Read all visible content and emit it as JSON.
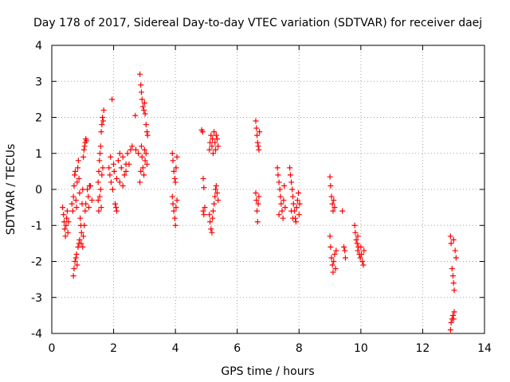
{
  "chart_data": {
    "type": "scatter",
    "title": "Day 178 of 2017, Sidereal Day-to-day VTEC variation (SDTVAR) for receiver daej",
    "xlabel": "GPS time / hours",
    "ylabel": "SDTVAR / TECUs",
    "xlim": [
      0,
      14
    ],
    "ylim": [
      -4,
      4
    ],
    "xticks": [
      0,
      2,
      4,
      6,
      8,
      10,
      12,
      14
    ],
    "yticks": [
      -4,
      -3,
      -2,
      -1,
      0,
      1,
      2,
      3,
      4
    ],
    "grid": true,
    "marker": "+",
    "marker_color": "#ff0000",
    "series": [
      {
        "name": "SDTVAR",
        "points": [
          [
            0.35,
            -0.5
          ],
          [
            0.38,
            -0.7
          ],
          [
            0.4,
            -0.9
          ],
          [
            0.42,
            -1.1
          ],
          [
            0.44,
            -1.3
          ],
          [
            0.46,
            -1.0
          ],
          [
            0.48,
            -0.8
          ],
          [
            0.5,
            -0.6
          ],
          [
            0.52,
            -1.2
          ],
          [
            0.54,
            -0.9
          ],
          [
            0.65,
            -0.4
          ],
          [
            0.68,
            -0.6
          ],
          [
            0.7,
            -0.2
          ],
          [
            0.72,
            0.1
          ],
          [
            0.74,
            0.4
          ],
          [
            0.76,
            0.5
          ],
          [
            0.78,
            -0.3
          ],
          [
            0.8,
            -0.5
          ],
          [
            0.82,
            0.2
          ],
          [
            0.84,
            0.6
          ],
          [
            0.86,
            0.8
          ],
          [
            0.88,
            0.3
          ],
          [
            0.9,
            -0.1
          ],
          [
            0.92,
            -0.8
          ],
          [
            0.94,
            -1.0
          ],
          [
            0.96,
            -1.2
          ],
          [
            0.98,
            -0.4
          ],
          [
            1.0,
            0.0
          ],
          [
            1.02,
            0.9
          ],
          [
            1.04,
            1.1
          ],
          [
            1.06,
            1.2
          ],
          [
            1.08,
            1.3
          ],
          [
            1.1,
            1.4
          ],
          [
            1.12,
            1.35
          ],
          [
            1.15,
            0.0
          ],
          [
            1.18,
            -0.2
          ],
          [
            1.2,
            -0.5
          ],
          [
            1.22,
            0.1
          ],
          [
            1.25,
            0.1
          ],
          [
            1.3,
            -0.3
          ],
          [
            0.7,
            -2.4
          ],
          [
            0.72,
            -2.2
          ],
          [
            0.75,
            -2.0
          ],
          [
            0.78,
            -1.9
          ],
          [
            0.8,
            -1.8
          ],
          [
            0.82,
            -2.1
          ],
          [
            0.85,
            -1.6
          ],
          [
            0.88,
            -1.5
          ],
          [
            0.9,
            -1.4
          ],
          [
            0.95,
            -1.5
          ],
          [
            1.0,
            -1.6
          ],
          [
            1.02,
            -1.3
          ],
          [
            1.05,
            -1.0
          ],
          [
            1.08,
            -0.6
          ],
          [
            1.1,
            -0.4
          ],
          [
            1.5,
            0.2
          ],
          [
            1.52,
            0.5
          ],
          [
            1.54,
            0.8
          ],
          [
            1.56,
            1.0
          ],
          [
            1.58,
            1.2
          ],
          [
            1.6,
            1.6
          ],
          [
            1.62,
            1.8
          ],
          [
            1.64,
            2.0
          ],
          [
            1.66,
            1.9
          ],
          [
            1.68,
            2.2
          ],
          [
            1.5,
            -0.3
          ],
          [
            1.52,
            -0.6
          ],
          [
            1.55,
            -0.2
          ],
          [
            1.58,
            0.0
          ],
          [
            1.6,
            -0.5
          ],
          [
            1.62,
            0.4
          ],
          [
            1.65,
            0.6
          ],
          [
            1.85,
            0.6
          ],
          [
            1.88,
            0.4
          ],
          [
            1.9,
            0.9
          ],
          [
            1.92,
            0.2
          ],
          [
            1.95,
            2.5
          ],
          [
            1.97,
            0.0
          ],
          [
            2.0,
            0.7
          ],
          [
            2.02,
            0.5
          ],
          [
            2.05,
            -0.4
          ],
          [
            2.08,
            -0.5
          ],
          [
            2.1,
            0.3
          ],
          [
            2.15,
            0.8
          ],
          [
            2.2,
            1.0
          ],
          [
            2.25,
            0.6
          ],
          [
            2.3,
            0.9
          ],
          [
            2.35,
            0.4
          ],
          [
            2.4,
            0.5
          ],
          [
            2.45,
            1.0
          ],
          [
            2.5,
            0.7
          ],
          [
            2.55,
            1.1
          ],
          [
            2.6,
            1.2
          ],
          [
            2.2,
            0.2
          ],
          [
            2.3,
            0.1
          ],
          [
            2.4,
            0.7
          ],
          [
            2.1,
            -0.6
          ],
          [
            2.7,
            2.05
          ],
          [
            2.72,
            1.1
          ],
          [
            2.8,
            1.0
          ],
          [
            2.85,
            3.2
          ],
          [
            2.88,
            2.9
          ],
          [
            2.9,
            2.7
          ],
          [
            2.92,
            2.5
          ],
          [
            2.95,
            2.3
          ],
          [
            2.98,
            2.2
          ],
          [
            3.0,
            2.4
          ],
          [
            3.02,
            2.1
          ],
          [
            3.05,
            1.8
          ],
          [
            3.08,
            1.6
          ],
          [
            3.1,
            1.5
          ],
          [
            2.9,
            1.2
          ],
          [
            2.92,
            0.9
          ],
          [
            2.95,
            0.6
          ],
          [
            2.98,
            0.4
          ],
          [
            3.0,
            1.1
          ],
          [
            3.02,
            0.8
          ],
          [
            3.05,
            1.0
          ],
          [
            3.08,
            0.7
          ],
          [
            2.85,
            0.2
          ],
          [
            2.88,
            0.5
          ],
          [
            3.9,
            1.0
          ],
          [
            3.92,
            0.8
          ],
          [
            3.95,
            0.5
          ],
          [
            3.98,
            0.3
          ],
          [
            4.0,
            0.2
          ],
          [
            4.02,
            0.6
          ],
          [
            4.05,
            0.9
          ],
          [
            3.9,
            -0.2
          ],
          [
            3.92,
            -0.4
          ],
          [
            3.95,
            -0.6
          ],
          [
            3.98,
            -0.8
          ],
          [
            4.0,
            -1.0
          ],
          [
            4.02,
            -0.5
          ],
          [
            4.05,
            -0.3
          ],
          [
            4.85,
            1.65
          ],
          [
            4.88,
            1.6
          ],
          [
            4.9,
            0.3
          ],
          [
            4.92,
            0.05
          ],
          [
            4.9,
            -0.6
          ],
          [
            4.92,
            -0.7
          ],
          [
            4.95,
            -0.5
          ],
          [
            5.1,
            1.1
          ],
          [
            5.12,
            1.3
          ],
          [
            5.15,
            1.5
          ],
          [
            5.18,
            1.2
          ],
          [
            5.2,
            1.4
          ],
          [
            5.22,
            1.0
          ],
          [
            5.25,
            1.6
          ],
          [
            5.28,
            1.3
          ],
          [
            5.3,
            1.1
          ],
          [
            5.32,
            1.5
          ],
          [
            5.35,
            1.4
          ],
          [
            5.38,
            1.2
          ],
          [
            5.1,
            -0.7
          ],
          [
            5.12,
            -0.9
          ],
          [
            5.15,
            -1.1
          ],
          [
            5.18,
            -1.2
          ],
          [
            5.2,
            -0.8
          ],
          [
            5.22,
            -0.6
          ],
          [
            5.25,
            -0.4
          ],
          [
            5.28,
            -0.2
          ],
          [
            5.3,
            0.0
          ],
          [
            5.32,
            0.1
          ],
          [
            5.35,
            -0.1
          ],
          [
            5.38,
            -0.3
          ],
          [
            6.6,
            1.9
          ],
          [
            6.62,
            1.7
          ],
          [
            6.64,
            1.5
          ],
          [
            6.66,
            1.3
          ],
          [
            6.68,
            1.2
          ],
          [
            6.7,
            1.1
          ],
          [
            6.72,
            1.6
          ],
          [
            6.6,
            -0.1
          ],
          [
            6.62,
            -0.3
          ],
          [
            6.64,
            -0.6
          ],
          [
            6.66,
            -0.9
          ],
          [
            6.68,
            -0.4
          ],
          [
            6.7,
            -0.2
          ],
          [
            7.3,
            0.6
          ],
          [
            7.32,
            0.4
          ],
          [
            7.35,
            0.2
          ],
          [
            7.38,
            0.0
          ],
          [
            7.4,
            -0.2
          ],
          [
            7.42,
            -0.4
          ],
          [
            7.45,
            -0.6
          ],
          [
            7.48,
            -0.8
          ],
          [
            7.5,
            -0.3
          ],
          [
            7.52,
            0.1
          ],
          [
            7.55,
            -0.5
          ],
          [
            7.35,
            -0.7
          ],
          [
            7.7,
            0.6
          ],
          [
            7.72,
            0.4
          ],
          [
            7.75,
            0.2
          ],
          [
            7.78,
            0.0
          ],
          [
            7.8,
            -0.2
          ],
          [
            7.82,
            -0.4
          ],
          [
            7.85,
            -0.6
          ],
          [
            7.88,
            -0.8
          ],
          [
            7.9,
            -0.9
          ],
          [
            7.92,
            -0.5
          ],
          [
            7.95,
            -0.3
          ],
          [
            7.98,
            -0.1
          ],
          [
            8.0,
            -0.7
          ],
          [
            8.02,
            -0.4
          ],
          [
            7.75,
            -0.6
          ],
          [
            7.8,
            -0.8
          ],
          [
            9.0,
            0.35
          ],
          [
            9.02,
            0.1
          ],
          [
            9.05,
            -0.2
          ],
          [
            9.08,
            -0.4
          ],
          [
            9.1,
            -0.6
          ],
          [
            9.12,
            -0.3
          ],
          [
            9.15,
            -0.5
          ],
          [
            9.0,
            -1.3
          ],
          [
            9.02,
            -1.6
          ],
          [
            9.05,
            -1.9
          ],
          [
            9.08,
            -2.1
          ],
          [
            9.1,
            -2.3
          ],
          [
            9.12,
            -2.0
          ],
          [
            9.15,
            -1.8
          ],
          [
            9.18,
            -2.2
          ],
          [
            9.2,
            -1.7
          ],
          [
            9.4,
            -0.6
          ],
          [
            9.45,
            -1.6
          ],
          [
            9.5,
            -1.9
          ],
          [
            9.48,
            -1.7
          ],
          [
            9.8,
            -1.0
          ],
          [
            9.82,
            -1.2
          ],
          [
            9.85,
            -1.4
          ],
          [
            9.88,
            -1.5
          ],
          [
            9.9,
            -1.7
          ],
          [
            9.92,
            -1.6
          ],
          [
            9.95,
            -1.8
          ],
          [
            9.98,
            -1.9
          ],
          [
            10.0,
            -1.6
          ],
          [
            10.02,
            -1.8
          ],
          [
            10.05,
            -2.0
          ],
          [
            10.08,
            -2.1
          ],
          [
            10.1,
            -1.7
          ],
          [
            9.9,
            -1.3
          ],
          [
            12.9,
            -1.3
          ],
          [
            12.92,
            -1.5
          ],
          [
            12.95,
            -2.2
          ],
          [
            12.98,
            -2.4
          ],
          [
            13.0,
            -2.6
          ],
          [
            13.02,
            -2.8
          ],
          [
            13.05,
            -1.7
          ],
          [
            13.08,
            -1.9
          ],
          [
            13.0,
            -1.4
          ],
          [
            12.9,
            -3.9
          ],
          [
            12.92,
            -3.7
          ],
          [
            12.95,
            -3.6
          ],
          [
            12.98,
            -3.5
          ],
          [
            13.0,
            -3.6
          ],
          [
            13.02,
            -3.4
          ]
        ]
      }
    ]
  }
}
